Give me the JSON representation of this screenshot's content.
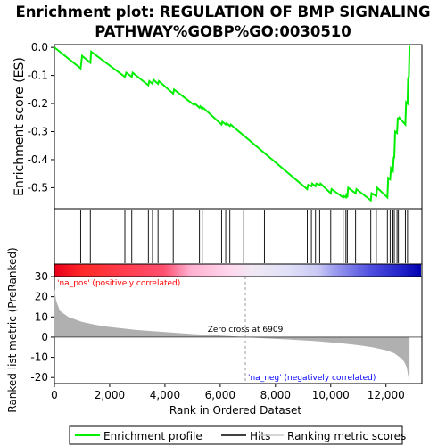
{
  "chart_data": {
    "type": "line",
    "title_line1": "Enrichment plot: REGULATION OF BMP SIGNALING",
    "title_line2": "PATHWAY%GOBP%GO:0030510",
    "es_panel": {
      "ylabel": "Enrichment score (ES)",
      "ylim": [
        -0.575,
        0.01
      ],
      "yticks": [
        0.0,
        -0.1,
        -0.2,
        -0.3,
        -0.4,
        -0.5
      ],
      "ytick_labels": [
        "0.0",
        "-0.1",
        "-0.2",
        "-0.3",
        "-0.4",
        "-0.5"
      ],
      "line_color": "#00ee00",
      "x": [
        0,
        950,
        1000,
        1300,
        1330,
        2550,
        2600,
        2800,
        2830,
        3400,
        3430,
        3550,
        3580,
        3750,
        3780,
        4300,
        4330,
        5050,
        5080,
        5250,
        5280,
        5350,
        5380,
        6050,
        6080,
        6200,
        6230,
        6350,
        6380,
        9150,
        9180,
        9300,
        9330,
        9450,
        9480,
        9600,
        9630,
        10000,
        10030,
        10450,
        10480,
        10550,
        10580,
        10600,
        10630,
        10900,
        10930,
        11450,
        11480,
        11650,
        11680,
        12050,
        12080,
        12150,
        12180,
        12250,
        12280,
        12300,
        12330,
        12400,
        12430,
        12450,
        12480,
        12700,
        12730,
        12780,
        12800,
        12830,
        12850
      ],
      "y": [
        0.0,
        -0.075,
        -0.03,
        -0.055,
        -0.015,
        -0.105,
        -0.09,
        -0.105,
        -0.09,
        -0.135,
        -0.12,
        -0.13,
        -0.115,
        -0.13,
        -0.12,
        -0.165,
        -0.15,
        -0.205,
        -0.2,
        -0.215,
        -0.21,
        -0.22,
        -0.215,
        -0.275,
        -0.265,
        -0.275,
        -0.27,
        -0.28,
        -0.275,
        -0.505,
        -0.49,
        -0.495,
        -0.485,
        -0.495,
        -0.485,
        -0.49,
        -0.485,
        -0.52,
        -0.505,
        -0.535,
        -0.53,
        -0.535,
        -0.52,
        -0.535,
        -0.5,
        -0.52,
        -0.505,
        -0.545,
        -0.52,
        -0.53,
        -0.5,
        -0.535,
        -0.465,
        -0.47,
        -0.43,
        -0.44,
        -0.39,
        -0.395,
        -0.3,
        -0.305,
        -0.25,
        -0.255,
        -0.25,
        -0.275,
        -0.195,
        -0.2,
        -0.11,
        -0.105,
        0.005
      ]
    },
    "hits_panel": {
      "hit_positions": [
        950,
        1300,
        2550,
        2800,
        3400,
        3550,
        3750,
        4300,
        5050,
        5250,
        5350,
        6050,
        6200,
        6350,
        6850,
        7600,
        9150,
        9250,
        9300,
        9450,
        9600,
        10000,
        10450,
        10550,
        10600,
        10900,
        11450,
        11650,
        12050,
        12150,
        12250,
        12300,
        12400,
        12450,
        12700,
        12780,
        12830
      ]
    },
    "ranked_panel": {
      "xlabel": "Rank in Ordered Dataset",
      "ylabel": "Ranked list metric (PreRanked)",
      "xlim": [
        0,
        13300
      ],
      "ylim": [
        -23,
        30
      ],
      "yticks": [
        30,
        20,
        10,
        0,
        -10,
        -20
      ],
      "ytick_labels": [
        "30",
        "20",
        "10",
        "0",
        "-10",
        "-20"
      ],
      "xticks": [
        0,
        2000,
        4000,
        6000,
        8000,
        10000,
        12000
      ],
      "xtick_labels": [
        "0",
        "2,000",
        "4,000",
        "6,000",
        "8,000",
        "10,000",
        "12,000"
      ],
      "metric_x": [
        0,
        60,
        200,
        500,
        1000,
        1500,
        2000,
        3000,
        4000,
        5000,
        6000,
        6909,
        7500,
        8500,
        9500,
        10500,
        11000,
        11500,
        12000,
        12300,
        12500,
        12650,
        12750,
        12800,
        12850
      ],
      "metric_y": [
        24,
        18,
        13,
        10,
        7.5,
        6,
        5,
        3.5,
        2.5,
        1.5,
        0.8,
        0,
        -0.5,
        -1.2,
        -2,
        -3.2,
        -4,
        -5,
        -6.5,
        -8,
        -10,
        -12,
        -15,
        -19,
        -22
      ],
      "zero_cross_label": "Zero cross at 6909",
      "zero_cross_x": 6909,
      "pos_label": "'na_pos' (positively correlated)",
      "neg_label": "'na_neg' (negatively correlated)",
      "pos_color": "#ff0000",
      "neg_color": "#0000ff",
      "fill_color": "#b0b0b0"
    },
    "legend": {
      "entries": [
        {
          "label": "Enrichment profile",
          "color": "#00ee00"
        },
        {
          "label": "Hits",
          "color": "#000000"
        },
        {
          "label": "Ranking metric scores",
          "color": "#c8c8c8"
        }
      ]
    }
  }
}
